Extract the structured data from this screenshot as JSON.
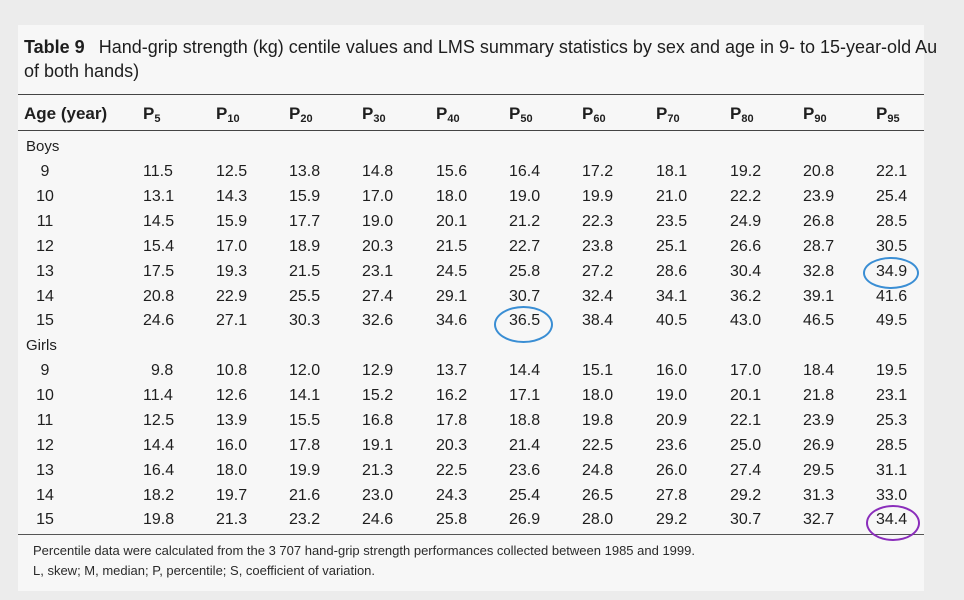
{
  "table": {
    "number_label": "Table 9",
    "caption_line1": "Hand-grip strength (kg) centile values and LMS summary statistics by sex and age in 9- to 15-year-old Au",
    "caption_line2": "of both hands)",
    "header": {
      "age": "Age (year)",
      "percentiles": [
        {
          "p": "P",
          "sub": "5"
        },
        {
          "p": "P",
          "sub": "10"
        },
        {
          "p": "P",
          "sub": "20"
        },
        {
          "p": "P",
          "sub": "30"
        },
        {
          "p": "P",
          "sub": "40"
        },
        {
          "p": "P",
          "sub": "50"
        },
        {
          "p": "P",
          "sub": "60"
        },
        {
          "p": "P",
          "sub": "70"
        },
        {
          "p": "P",
          "sub": "80"
        },
        {
          "p": "P",
          "sub": "90"
        },
        {
          "p": "P",
          "sub": "95"
        }
      ]
    },
    "sections": [
      {
        "label": "Boys",
        "rows": [
          {
            "age": "9",
            "values": [
              "11.5",
              "12.5",
              "13.8",
              "14.8",
              "15.6",
              "16.4",
              "17.2",
              "18.1",
              "19.2",
              "20.8",
              "22.1"
            ]
          },
          {
            "age": "10",
            "values": [
              "13.1",
              "14.3",
              "15.9",
              "17.0",
              "18.0",
              "19.0",
              "19.9",
              "21.0",
              "22.2",
              "23.9",
              "25.4"
            ]
          },
          {
            "age": "11",
            "values": [
              "14.5",
              "15.9",
              "17.7",
              "19.0",
              "20.1",
              "21.2",
              "22.3",
              "23.5",
              "24.9",
              "26.8",
              "28.5"
            ]
          },
          {
            "age": "12",
            "values": [
              "15.4",
              "17.0",
              "18.9",
              "20.3",
              "21.5",
              "22.7",
              "23.8",
              "25.1",
              "26.6",
              "28.7",
              "30.5"
            ]
          },
          {
            "age": "13",
            "values": [
              "17.5",
              "19.3",
              "21.5",
              "23.1",
              "24.5",
              "25.8",
              "27.2",
              "28.6",
              "30.4",
              "32.8",
              "34.9"
            ]
          },
          {
            "age": "14",
            "values": [
              "20.8",
              "22.9",
              "25.5",
              "27.4",
              "29.1",
              "30.7",
              "32.4",
              "34.1",
              "36.2",
              "39.1",
              "41.6"
            ]
          },
          {
            "age": "15",
            "values": [
              "24.6",
              "27.1",
              "30.3",
              "32.6",
              "34.6",
              "36.5",
              "38.4",
              "40.5",
              "43.0",
              "46.5",
              "49.5"
            ]
          }
        ]
      },
      {
        "label": "Girls",
        "rows": [
          {
            "age": "9",
            "values": [
              "9.8",
              "10.8",
              "12.0",
              "12.9",
              "13.7",
              "14.4",
              "15.1",
              "16.0",
              "17.0",
              "18.4",
              "19.5"
            ]
          },
          {
            "age": "10",
            "values": [
              "11.4",
              "12.6",
              "14.1",
              "15.2",
              "16.2",
              "17.1",
              "18.0",
              "19.0",
              "20.1",
              "21.8",
              "23.1"
            ]
          },
          {
            "age": "11",
            "values": [
              "12.5",
              "13.9",
              "15.5",
              "16.8",
              "17.8",
              "18.8",
              "19.8",
              "20.9",
              "22.1",
              "23.9",
              "25.3"
            ]
          },
          {
            "age": "12",
            "values": [
              "14.4",
              "16.0",
              "17.8",
              "19.1",
              "20.3",
              "21.4",
              "22.5",
              "23.6",
              "25.0",
              "26.9",
              "28.5"
            ]
          },
          {
            "age": "13",
            "values": [
              "16.4",
              "18.0",
              "19.9",
              "21.3",
              "22.5",
              "23.6",
              "24.8",
              "26.0",
              "27.4",
              "29.5",
              "31.1"
            ]
          },
          {
            "age": "14",
            "values": [
              "18.2",
              "19.7",
              "21.6",
              "23.0",
              "24.3",
              "25.4",
              "26.5",
              "27.8",
              "29.2",
              "31.3",
              "33.0"
            ]
          },
          {
            "age": "15",
            "values": [
              "19.8",
              "21.3",
              "23.2",
              "24.6",
              "25.8",
              "26.9",
              "28.0",
              "29.2",
              "30.7",
              "32.7",
              "34.4"
            ]
          }
        ]
      }
    ],
    "footnotes": [
      "Percentile data were calculated from the 3 707 hand-grip strength performances collected between 1985 and 1999.",
      "L, skew; M, median; P, percentile; S, coefficient of variation."
    ]
  },
  "annotations": [
    {
      "name": "boys-13-p95-circle",
      "color": "#3a8ed4"
    },
    {
      "name": "boys-15-p50-circle",
      "color": "#3a8ed4"
    },
    {
      "name": "girls-15-p95-circle",
      "color": "#8a2dbb"
    }
  ]
}
